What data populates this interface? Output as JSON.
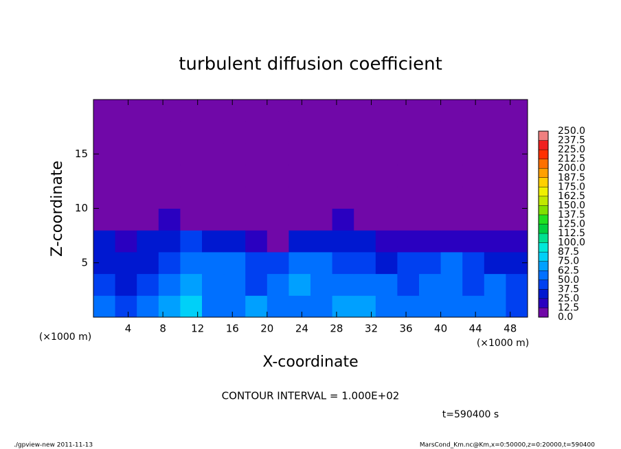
{
  "chart_data": {
    "type": "heatmap",
    "title": "turbulent diffusion coefficient",
    "x_label": "X-coordinate",
    "y_label": "Z-coordinate",
    "x_unit": "(×1000 m)",
    "y_unit": "(×1000 m)",
    "note": "CONTOUR INTERVAL = 1.000E+02",
    "time_label": "t=590400 s",
    "footer_left": "./gpview-new  2011-11-13",
    "footer_right": "MarsCond_Km.nc@Km,x=0:50000,z=0:20000,t=590400",
    "xlim": [
      0,
      50
    ],
    "ylim": [
      0,
      20
    ],
    "xticks": [
      4,
      8,
      12,
      16,
      20,
      24,
      28,
      32,
      36,
      40,
      44,
      48
    ],
    "yticks": [
      5,
      10,
      15
    ],
    "x": [
      1.25,
      3.75,
      6.25,
      8.75,
      11.25,
      13.75,
      16.25,
      18.75,
      21.25,
      23.75,
      26.25,
      28.75,
      31.25,
      33.75,
      36.25,
      38.75,
      41.25,
      43.75,
      46.25,
      48.75
    ],
    "y": [
      1,
      3,
      5,
      7,
      9,
      11,
      13,
      15,
      17,
      19
    ],
    "values": [
      [
        50,
        45,
        55,
        70,
        75,
        60,
        55,
        65,
        60,
        55,
        50,
        70,
        65,
        50,
        60,
        55,
        60,
        55,
        50,
        45
      ],
      [
        40,
        35,
        45,
        55,
        65,
        60,
        50,
        45,
        60,
        70,
        55,
        50,
        55,
        60,
        45,
        50,
        55,
        45,
        50,
        40
      ],
      [
        30,
        30,
        35,
        45,
        55,
        60,
        55,
        40,
        45,
        55,
        60,
        45,
        40,
        35,
        45,
        40,
        50,
        45,
        35,
        35
      ],
      [
        25,
        20,
        25,
        35,
        40,
        35,
        25,
        20,
        0,
        25,
        30,
        35,
        25,
        20,
        20,
        20,
        15,
        20,
        15,
        20
      ],
      [
        0,
        0,
        0,
        20,
        10,
        0,
        0,
        0,
        0,
        0,
        10,
        15,
        0,
        0,
        0,
        0,
        0,
        0,
        0,
        0
      ],
      [
        0,
        0,
        0,
        0,
        0,
        0,
        0,
        0,
        0,
        0,
        0,
        0,
        0,
        0,
        0,
        0,
        0,
        0,
        0,
        0
      ],
      [
        0,
        0,
        0,
        0,
        0,
        0,
        0,
        0,
        0,
        0,
        0,
        0,
        0,
        0,
        0,
        0,
        0,
        0,
        0,
        0
      ],
      [
        0,
        0,
        0,
        0,
        0,
        0,
        0,
        0,
        0,
        0,
        0,
        0,
        0,
        0,
        0,
        0,
        0,
        0,
        0,
        0
      ],
      [
        0,
        0,
        0,
        0,
        0,
        0,
        0,
        0,
        0,
        0,
        0,
        0,
        0,
        0,
        0,
        0,
        0,
        0,
        0,
        0
      ],
      [
        0,
        0,
        0,
        0,
        0,
        0,
        0,
        0,
        0,
        0,
        0,
        0,
        0,
        0,
        0,
        0,
        0,
        0,
        0,
        0
      ]
    ],
    "levels": [
      {
        "value": 0,
        "label": "0.0"
      },
      {
        "value": 12.5,
        "label": "12.5"
      },
      {
        "value": 25,
        "label": "25.0"
      },
      {
        "value": 37.5,
        "label": "37.5"
      },
      {
        "value": 50,
        "label": "50.0"
      },
      {
        "value": 62.5,
        "label": "62.5"
      },
      {
        "value": 75,
        "label": "75.0"
      },
      {
        "value": 87.5,
        "label": "87.5"
      },
      {
        "value": 100,
        "label": "100.0"
      },
      {
        "value": 112.5,
        "label": "112.5"
      },
      {
        "value": 125,
        "label": "125.0"
      },
      {
        "value": 137.5,
        "label": "137.5"
      },
      {
        "value": 150,
        "label": "150.0"
      },
      {
        "value": 162.5,
        "label": "162.5"
      },
      {
        "value": 175,
        "label": "175.0"
      },
      {
        "value": 187.5,
        "label": "187.5"
      },
      {
        "value": 200,
        "label": "200.0"
      },
      {
        "value": 212.5,
        "label": "212.5"
      },
      {
        "value": 225,
        "label": "225.0"
      },
      {
        "value": 237.5,
        "label": "237.5"
      },
      {
        "value": 250,
        "label": "250.0"
      }
    ],
    "colors": [
      "#7008a8",
      "#2a00c0",
      "#0018d0",
      "#0040f0",
      "#0070ff",
      "#00a0ff",
      "#00d0f8",
      "#00e8d8",
      "#00e090",
      "#00d040",
      "#20e020",
      "#80e000",
      "#c0e800",
      "#f0f000",
      "#ffd000",
      "#ffa000",
      "#ff7000",
      "#ff3000",
      "#f02020",
      "#f08080"
    ]
  }
}
